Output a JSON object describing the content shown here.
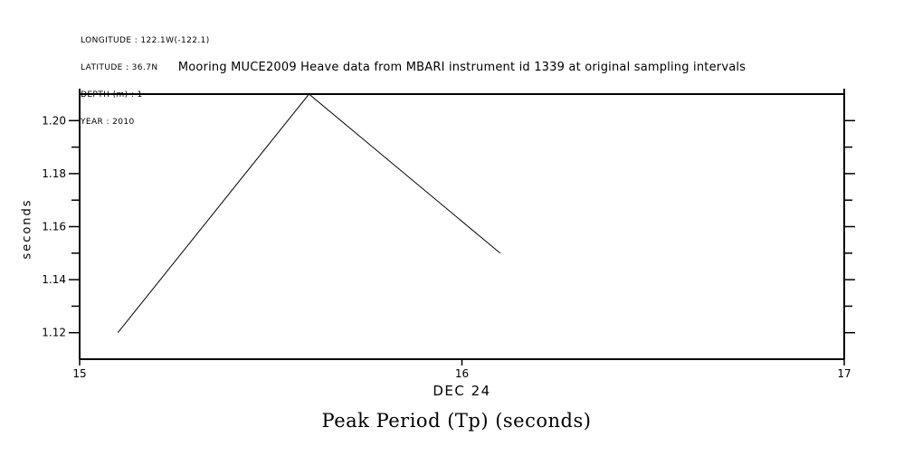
{
  "metadata": {
    "longitude": "LONGITUDE : 122.1W(-122.1)",
    "latitude": "LATITUDE : 36.7N",
    "depth": "DEPTH (m) : 1",
    "year": "YEAR : 2010"
  },
  "title": "Mooring MUCE2009 Heave data from MBARI instrument id 1339 at original sampling intervals",
  "chart_data": {
    "type": "line",
    "title": "Mooring MUCE2009 Heave data from MBARI instrument id 1339 at original sampling intervals",
    "bottom_title": "Peak Period (Tp) (seconds)",
    "xlabel": "DEC 24",
    "ylabel": "seconds",
    "x": [
      15.1,
      15.6,
      16.1
    ],
    "y": [
      1.12,
      1.21,
      1.15
    ],
    "xlim": [
      15,
      17
    ],
    "ylim": [
      1.11,
      1.21
    ],
    "x_ticks": [
      {
        "value": 15,
        "label": "15"
      },
      {
        "value": 16,
        "label": "16"
      },
      {
        "value": 17,
        "label": "17"
      }
    ],
    "y_ticks": [
      {
        "value": 1.12,
        "label": "1.12",
        "major": true
      },
      {
        "value": 1.13,
        "label": "",
        "major": false
      },
      {
        "value": 1.14,
        "label": "1.14",
        "major": true
      },
      {
        "value": 1.15,
        "label": "",
        "major": false
      },
      {
        "value": 1.16,
        "label": "1.16",
        "major": true
      },
      {
        "value": 1.17,
        "label": "",
        "major": false
      },
      {
        "value": 1.18,
        "label": "1.18",
        "major": true
      },
      {
        "value": 1.19,
        "label": "",
        "major": false
      },
      {
        "value": 1.2,
        "label": "1.20",
        "major": true
      }
    ],
    "grid": false,
    "legend": false,
    "line_color": "#000000",
    "axis_color": "#000000",
    "background": "#ffffff"
  }
}
